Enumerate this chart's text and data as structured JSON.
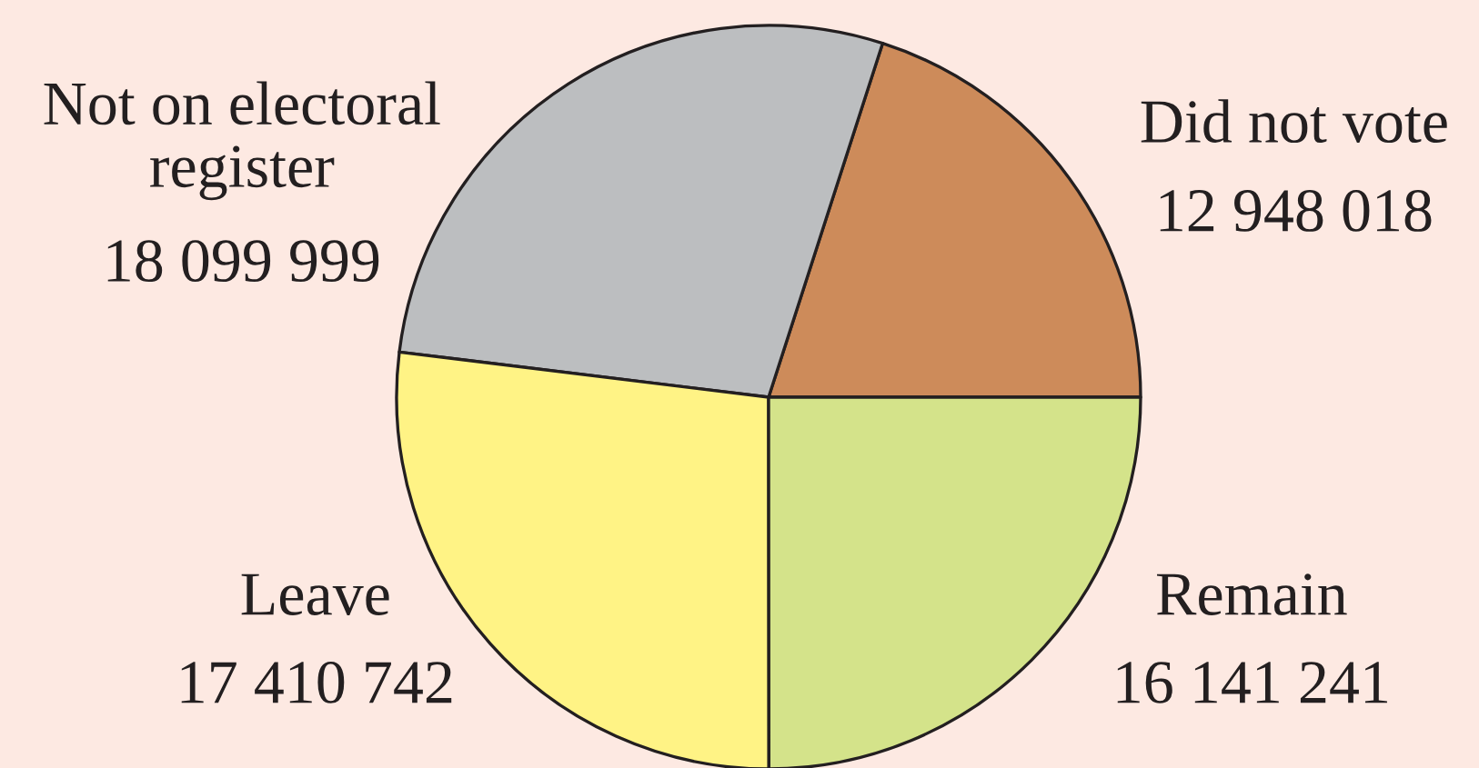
{
  "chart_data": {
    "type": "pie",
    "categories": [
      "Did not vote",
      "Not on electoral\nregister",
      "Leave",
      "Remain"
    ],
    "values": [
      12948018,
      18099999,
      17410742,
      16141241
    ],
    "value_labels": [
      "12 948 018",
      "18 099 999",
      "17 410 742",
      "16 141 241"
    ],
    "colors": [
      "#cd8b5a",
      "#bcbec0",
      "#fff385",
      "#d4e38a"
    ]
  }
}
